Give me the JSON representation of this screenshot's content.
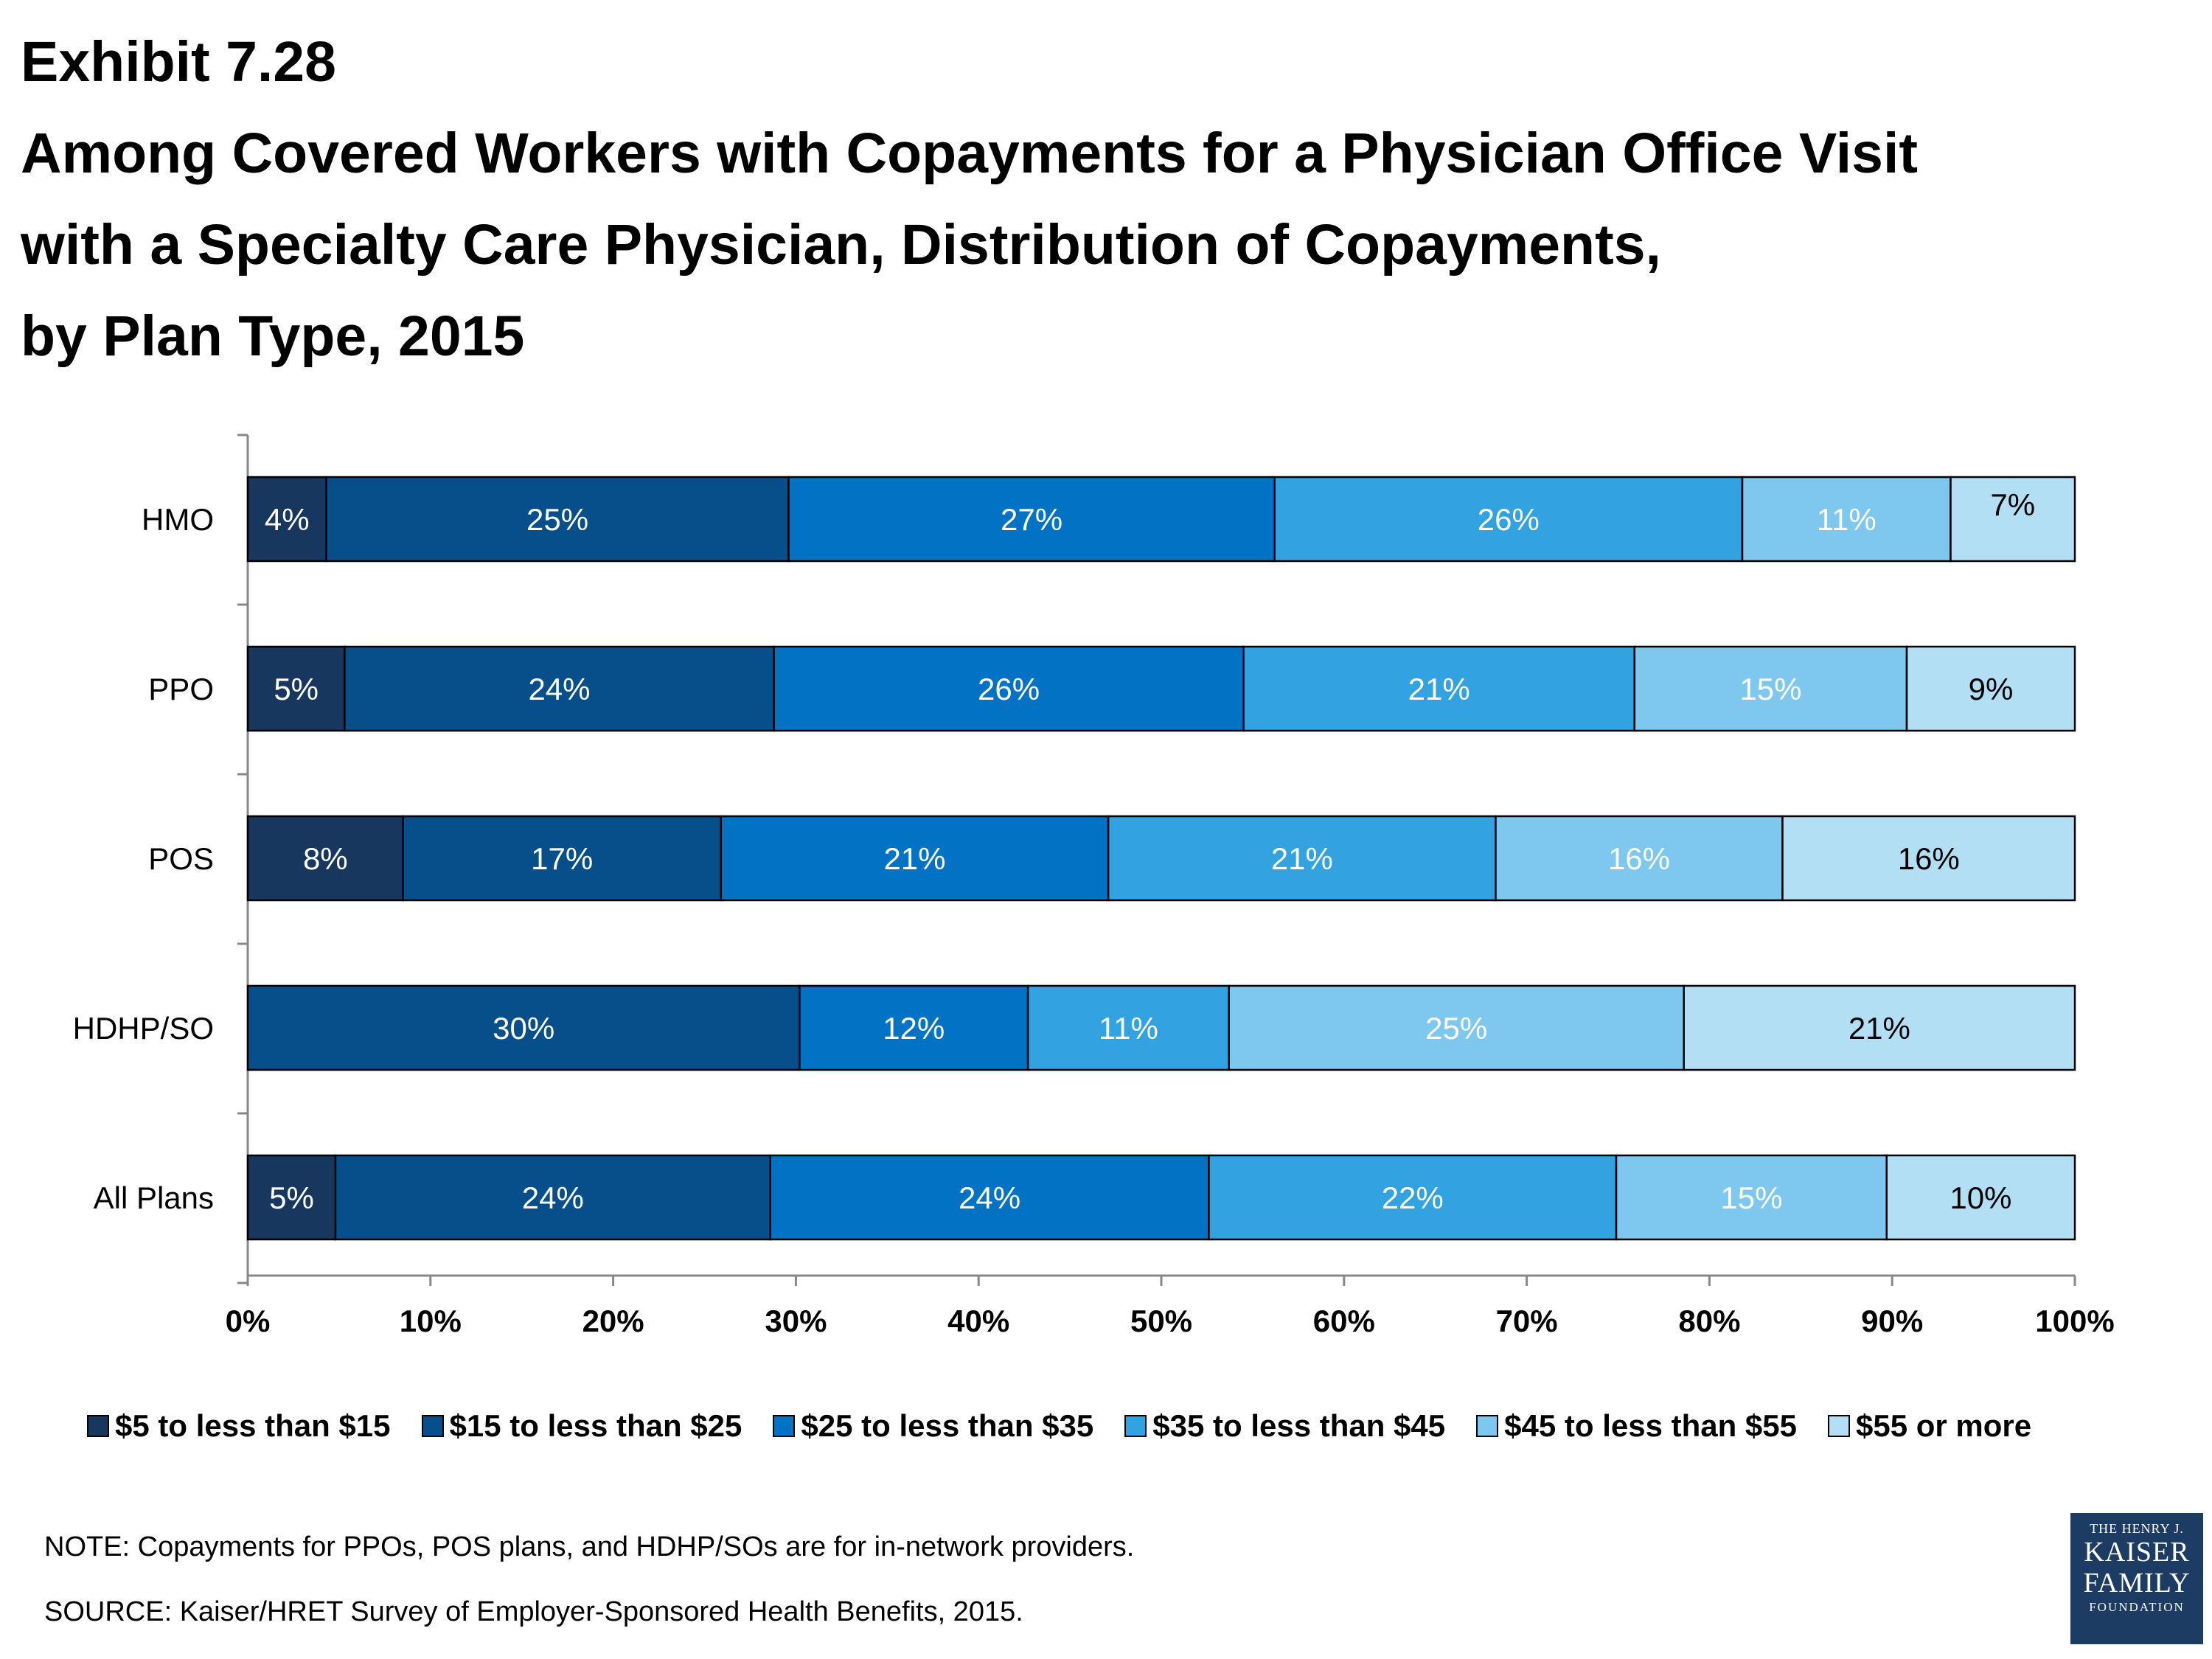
{
  "title": {
    "line1": "Exhibit 7.28",
    "line2": "Among Covered Workers with Copayments for a Physician Office Visit",
    "line3": "with a Specialty Care Physician, Distribution of Copayments,",
    "line4": "by Plan Type, 2015"
  },
  "colors": [
    "#17375e",
    "#064f8a",
    "#0272c4",
    "#32a2e1",
    "#7ec7ee",
    "#b3dff5"
  ],
  "label_colors": [
    "#ffffff",
    "#ffffff",
    "#ffffff",
    "#ffffff",
    "#ffffff",
    "#000000"
  ],
  "chart_data": {
    "type": "bar",
    "orientation": "horizontal",
    "stacked": true,
    "categories": [
      "HMO",
      "PPO",
      "POS",
      "HDHP/SO",
      "All Plans"
    ],
    "series": [
      {
        "name": "$5 to less than $15",
        "values": [
          4.3,
          5.3,
          8.5,
          0,
          4.8
        ],
        "labels": [
          "4%",
          "5%",
          "8%",
          "",
          "5%"
        ]
      },
      {
        "name": "$15 to less than $25",
        "values": [
          25.3,
          23.5,
          17.4,
          30.2,
          23.8
        ],
        "labels": [
          "25%",
          "24%",
          "17%",
          "30%",
          "24%"
        ]
      },
      {
        "name": "$25 to less than $35",
        "values": [
          26.6,
          25.7,
          21.2,
          12.5,
          24.0
        ],
        "labels": [
          "27%",
          "26%",
          "21%",
          "12%",
          "24%"
        ]
      },
      {
        "name": "$35 to less than $45",
        "values": [
          25.6,
          21.4,
          21.2,
          11.0,
          22.3
        ],
        "labels": [
          "26%",
          "21%",
          "21%",
          "11%",
          "22%"
        ]
      },
      {
        "name": "$45 to less than $55",
        "values": [
          11.4,
          14.9,
          15.7,
          24.9,
          14.8
        ],
        "labels": [
          "11%",
          "15%",
          "16%",
          "25%",
          "15%"
        ]
      },
      {
        "name": "$55 or more",
        "values": [
          6.8,
          9.2,
          16.0,
          21.4,
          10.3
        ],
        "labels": [
          "7%",
          "9%",
          "16%",
          "21%",
          "10%"
        ]
      }
    ],
    "xlim": [
      0,
      100
    ],
    "x_ticks": [
      "0%",
      "10%",
      "20%",
      "30%",
      "40%",
      "50%",
      "60%",
      "70%",
      "80%",
      "90%",
      "100%"
    ],
    "legend_position": "bottom",
    "grid": false
  },
  "notes": {
    "note": "NOTE: Copayments for PPOs, POS plans, and HDHP/SOs are for in-network providers.",
    "source": "SOURCE:  Kaiser/HRET Survey of Employer-Sponsored Health Benefits, 2015."
  },
  "logo": {
    "line1": "THE HENRY J.",
    "line2": "KAISER",
    "line3": "FAMILY",
    "line4": "FOUNDATION"
  }
}
